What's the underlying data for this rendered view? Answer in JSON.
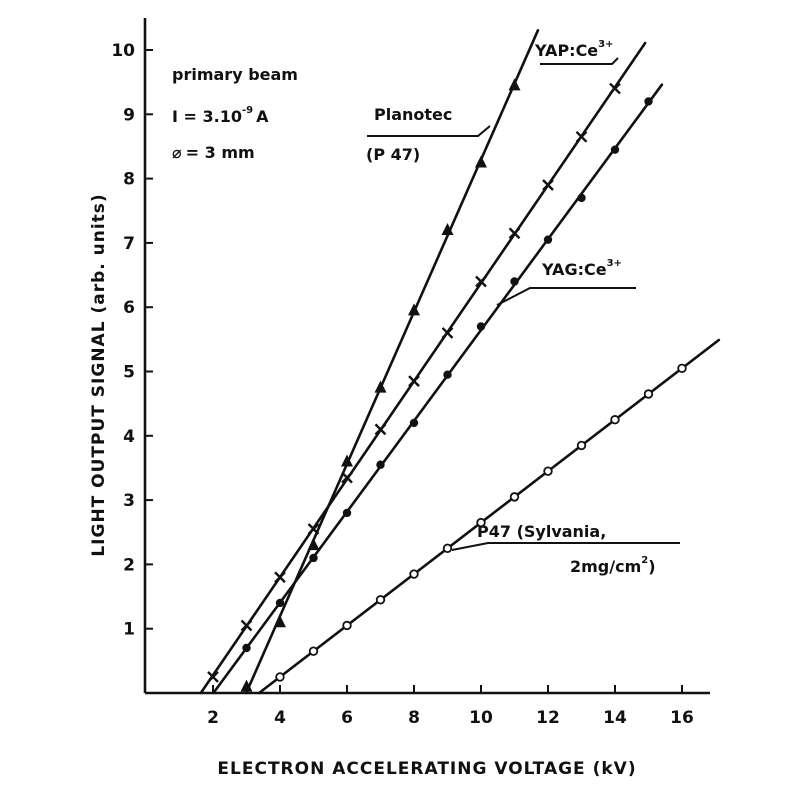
{
  "chart_data": {
    "type": "line",
    "xlabel": "ELECTRON ACCELERATING VOLTAGE (kV)",
    "ylabel": "LIGHT OUTPUT SIGNAL (arb. units)",
    "xlim": [
      0,
      17
    ],
    "ylim": [
      0,
      10.5
    ],
    "x_ticks": [
      2,
      4,
      6,
      8,
      10,
      12,
      14,
      16
    ],
    "y_ticks": [
      1,
      2,
      3,
      4,
      5,
      6,
      7,
      8,
      9,
      10
    ],
    "grid": false,
    "annotation": {
      "line1": "primary beam",
      "line2_prefix": "I = 3.10",
      "line2_exp": "-9",
      "line2_suffix": "A",
      "line3_symbol": "⌀",
      "line3_text": "= 3 mm"
    },
    "series": [
      {
        "name": "Planotec (P 47)",
        "label_lines": [
          "Planotec",
          "(P 47)"
        ],
        "marker": "triangle",
        "x": [
          3,
          4,
          5,
          6,
          7,
          8,
          9,
          10,
          11
        ],
        "y": [
          0.1,
          1.1,
          2.3,
          3.6,
          4.75,
          5.95,
          7.2,
          8.25,
          9.45
        ]
      },
      {
        "name": "YAP:Ce3+",
        "label_base": "YAP:Ce",
        "label_sup": "3+",
        "marker": "x",
        "x": [
          2,
          3,
          4,
          5,
          6,
          7,
          8,
          9,
          10,
          11,
          12,
          13,
          14
        ],
        "y": [
          0.25,
          1.05,
          1.8,
          2.55,
          3.35,
          4.1,
          4.85,
          5.6,
          6.4,
          7.15,
          7.9,
          8.65,
          9.4
        ]
      },
      {
        "name": "YAG:Ce3+",
        "label_base": "YAG:Ce",
        "label_sup": "3+",
        "marker": "dot",
        "x": [
          3,
          4,
          5,
          6,
          7,
          8,
          9,
          10,
          11,
          12,
          13,
          14,
          15
        ],
        "y": [
          0.7,
          1.4,
          2.1,
          2.8,
          3.55,
          4.2,
          4.95,
          5.7,
          6.4,
          7.05,
          7.7,
          8.45,
          9.2
        ]
      },
      {
        "name": "P47 (Sylvania, 2mg/cm2)",
        "label_line1": "P47 (Sylvania,",
        "label_line2_base": "2mg/cm",
        "label_line2_sup": "2",
        "label_line2_end": ")",
        "marker": "circle",
        "x": [
          4,
          5,
          6,
          7,
          8,
          9,
          10,
          11,
          12,
          13,
          14,
          15,
          16
        ],
        "y": [
          0.25,
          0.65,
          1.05,
          1.45,
          1.85,
          2.25,
          2.65,
          3.05,
          3.45,
          3.85,
          4.25,
          4.65,
          5.05
        ]
      }
    ]
  }
}
